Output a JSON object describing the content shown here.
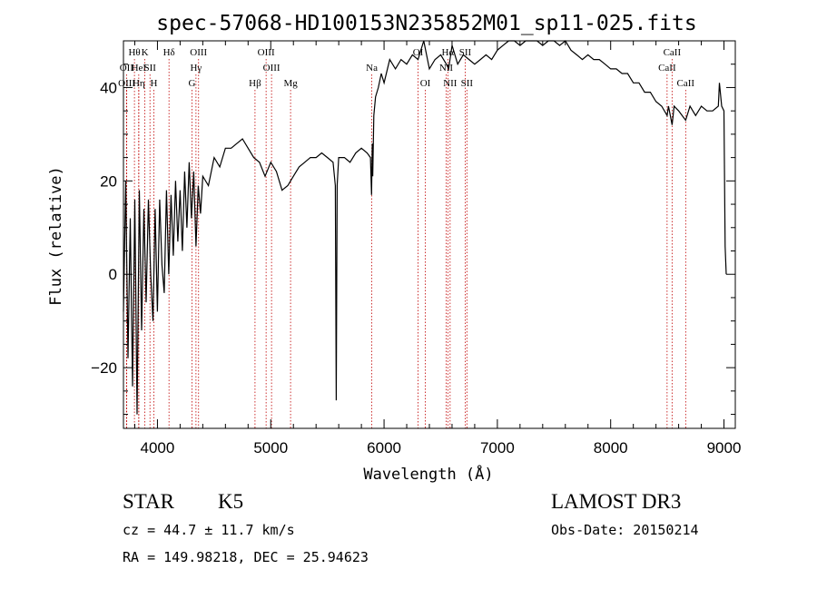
{
  "chart_data": {
    "type": "line",
    "title": "spec-57068-HD100153N235852M01_sp11-025.fits",
    "xlabel": "Wavelength (Å)",
    "ylabel": "Flux (relative)",
    "xlim": [
      3700,
      9100
    ],
    "ylim": [
      -33,
      50
    ],
    "x_ticks": [
      4000,
      5000,
      6000,
      7000,
      8000,
      9000
    ],
    "y_ticks": [
      -20,
      0,
      20,
      40
    ],
    "series": [
      {
        "name": "flux",
        "points": [
          [
            3700,
            -8
          ],
          [
            3720,
            20
          ],
          [
            3740,
            -18
          ],
          [
            3760,
            12
          ],
          [
            3780,
            -24
          ],
          [
            3800,
            16
          ],
          [
            3820,
            -30
          ],
          [
            3840,
            18
          ],
          [
            3860,
            -12
          ],
          [
            3880,
            14
          ],
          [
            3900,
            -6
          ],
          [
            3920,
            16
          ],
          [
            3940,
            0
          ],
          [
            3960,
            -10
          ],
          [
            3980,
            14
          ],
          [
            4000,
            -8
          ],
          [
            4020,
            16
          ],
          [
            4040,
            2
          ],
          [
            4060,
            -4
          ],
          [
            4080,
            18
          ],
          [
            4100,
            0
          ],
          [
            4120,
            17
          ],
          [
            4140,
            4
          ],
          [
            4160,
            20
          ],
          [
            4180,
            7
          ],
          [
            4200,
            18
          ],
          [
            4220,
            5
          ],
          [
            4240,
            22
          ],
          [
            4260,
            10
          ],
          [
            4280,
            24
          ],
          [
            4300,
            12
          ],
          [
            4320,
            22
          ],
          [
            4340,
            6
          ],
          [
            4360,
            19
          ],
          [
            4380,
            13
          ],
          [
            4400,
            21
          ],
          [
            4450,
            19
          ],
          [
            4500,
            25
          ],
          [
            4550,
            23
          ],
          [
            4600,
            27
          ],
          [
            4650,
            27
          ],
          [
            4700,
            28
          ],
          [
            4750,
            29
          ],
          [
            4800,
            27
          ],
          [
            4850,
            25
          ],
          [
            4900,
            24
          ],
          [
            4950,
            21
          ],
          [
            5000,
            24
          ],
          [
            5050,
            22
          ],
          [
            5100,
            18
          ],
          [
            5150,
            19
          ],
          [
            5200,
            21
          ],
          [
            5250,
            23
          ],
          [
            5300,
            24
          ],
          [
            5350,
            25
          ],
          [
            5400,
            25
          ],
          [
            5450,
            26
          ],
          [
            5500,
            25
          ],
          [
            5550,
            24
          ],
          [
            5570,
            19
          ],
          [
            5578,
            -27
          ],
          [
            5586,
            19
          ],
          [
            5600,
            25
          ],
          [
            5650,
            25
          ],
          [
            5700,
            24
          ],
          [
            5750,
            26
          ],
          [
            5800,
            27
          ],
          [
            5850,
            26
          ],
          [
            5880,
            25
          ],
          [
            5890,
            17
          ],
          [
            5896,
            28
          ],
          [
            5900,
            21
          ],
          [
            5910,
            34
          ],
          [
            5925,
            38
          ],
          [
            5950,
            40
          ],
          [
            5975,
            43
          ],
          [
            6000,
            41
          ],
          [
            6050,
            46
          ],
          [
            6100,
            44
          ],
          [
            6150,
            46
          ],
          [
            6200,
            45
          ],
          [
            6250,
            47
          ],
          [
            6300,
            46
          ],
          [
            6350,
            50
          ],
          [
            6400,
            44
          ],
          [
            6450,
            46
          ],
          [
            6500,
            47
          ],
          [
            6550,
            45
          ],
          [
            6570,
            44
          ],
          [
            6600,
            49
          ],
          [
            6650,
            45
          ],
          [
            6700,
            47
          ],
          [
            6750,
            46
          ],
          [
            6800,
            45
          ],
          [
            6850,
            46
          ],
          [
            6900,
            47
          ],
          [
            6950,
            46
          ],
          [
            7000,
            48
          ],
          [
            7050,
            49
          ],
          [
            7100,
            51
          ],
          [
            7150,
            50
          ],
          [
            7200,
            49
          ],
          [
            7250,
            52
          ],
          [
            7300,
            50
          ],
          [
            7350,
            51
          ],
          [
            7400,
            49
          ],
          [
            7450,
            50
          ],
          [
            7500,
            50
          ],
          [
            7550,
            49
          ],
          [
            7600,
            50
          ],
          [
            7650,
            48
          ],
          [
            7700,
            47
          ],
          [
            7750,
            46
          ],
          [
            7800,
            47
          ],
          [
            7850,
            46
          ],
          [
            7900,
            46
          ],
          [
            7950,
            45
          ],
          [
            8000,
            44
          ],
          [
            8050,
            44
          ],
          [
            8100,
            43
          ],
          [
            8150,
            43
          ],
          [
            8200,
            41
          ],
          [
            8250,
            41
          ],
          [
            8300,
            39
          ],
          [
            8350,
            39
          ],
          [
            8400,
            37
          ],
          [
            8450,
            36
          ],
          [
            8498,
            34
          ],
          [
            8510,
            36
          ],
          [
            8542,
            32
          ],
          [
            8560,
            36
          ],
          [
            8600,
            35
          ],
          [
            8662,
            33
          ],
          [
            8700,
            36
          ],
          [
            8750,
            34
          ],
          [
            8800,
            36
          ],
          [
            8850,
            35
          ],
          [
            8900,
            35
          ],
          [
            8950,
            36
          ],
          [
            8960,
            41
          ],
          [
            8980,
            36
          ],
          [
            9000,
            35
          ],
          [
            9010,
            6
          ],
          [
            9020,
            0
          ]
        ]
      }
    ],
    "lines": [
      {
        "x": 3797,
        "label": "Hθ",
        "row": 0
      },
      {
        "x": 3727,
        "label": "OII",
        "row": 1
      },
      {
        "x": 3729,
        "label": "OIII",
        "row": 2
      },
      {
        "x": 3835,
        "label": "HeI",
        "row": 1
      },
      {
        "x": 3889,
        "label": "K",
        "row": 0
      },
      {
        "x": 3835,
        "label": "Hη",
        "row": 2
      },
      {
        "x": 3934,
        "label": "SII",
        "row": 1
      },
      {
        "x": 3968,
        "label": "H",
        "row": 2
      },
      {
        "x": 4102,
        "label": "Hδ",
        "row": 0
      },
      {
        "x": 4363,
        "label": "OIII",
        "row": 0
      },
      {
        "x": 4340,
        "label": "Hγ",
        "row": 1
      },
      {
        "x": 4305,
        "label": "G",
        "row": 2
      },
      {
        "x": 4861,
        "label": "Hβ",
        "row": 2
      },
      {
        "x": 4959,
        "label": "OIII",
        "row": 0
      },
      {
        "x": 5007,
        "label": "OIII",
        "row": 1
      },
      {
        "x": 5175,
        "label": "Mg",
        "row": 2
      },
      {
        "x": 5892,
        "label": "Na",
        "row": 1
      },
      {
        "x": 6300,
        "label": "OI",
        "row": 0
      },
      {
        "x": 6364,
        "label": "OI",
        "row": 2
      },
      {
        "x": 6548,
        "label": "NII",
        "row": 1
      },
      {
        "x": 6563,
        "label": "Hα",
        "row": 0
      },
      {
        "x": 6583,
        "label": "NII",
        "row": 2
      },
      {
        "x": 6716,
        "label": "SII",
        "row": 0
      },
      {
        "x": 6731,
        "label": "SII",
        "row": 2
      },
      {
        "x": 8498,
        "label": "CaII",
        "row": 1
      },
      {
        "x": 8542,
        "label": "CaII",
        "row": 0
      },
      {
        "x": 8662,
        "label": "CaII",
        "row": 2
      }
    ]
  },
  "info": {
    "object_class": "STAR",
    "subclass": "K5",
    "survey": "LAMOST DR3",
    "redshift": "cz = 44.7 ± 11.7 km/s",
    "obs_date": "Obs-Date: 20150214",
    "coords": "RA = 149.98218, DEC =  25.94623"
  }
}
